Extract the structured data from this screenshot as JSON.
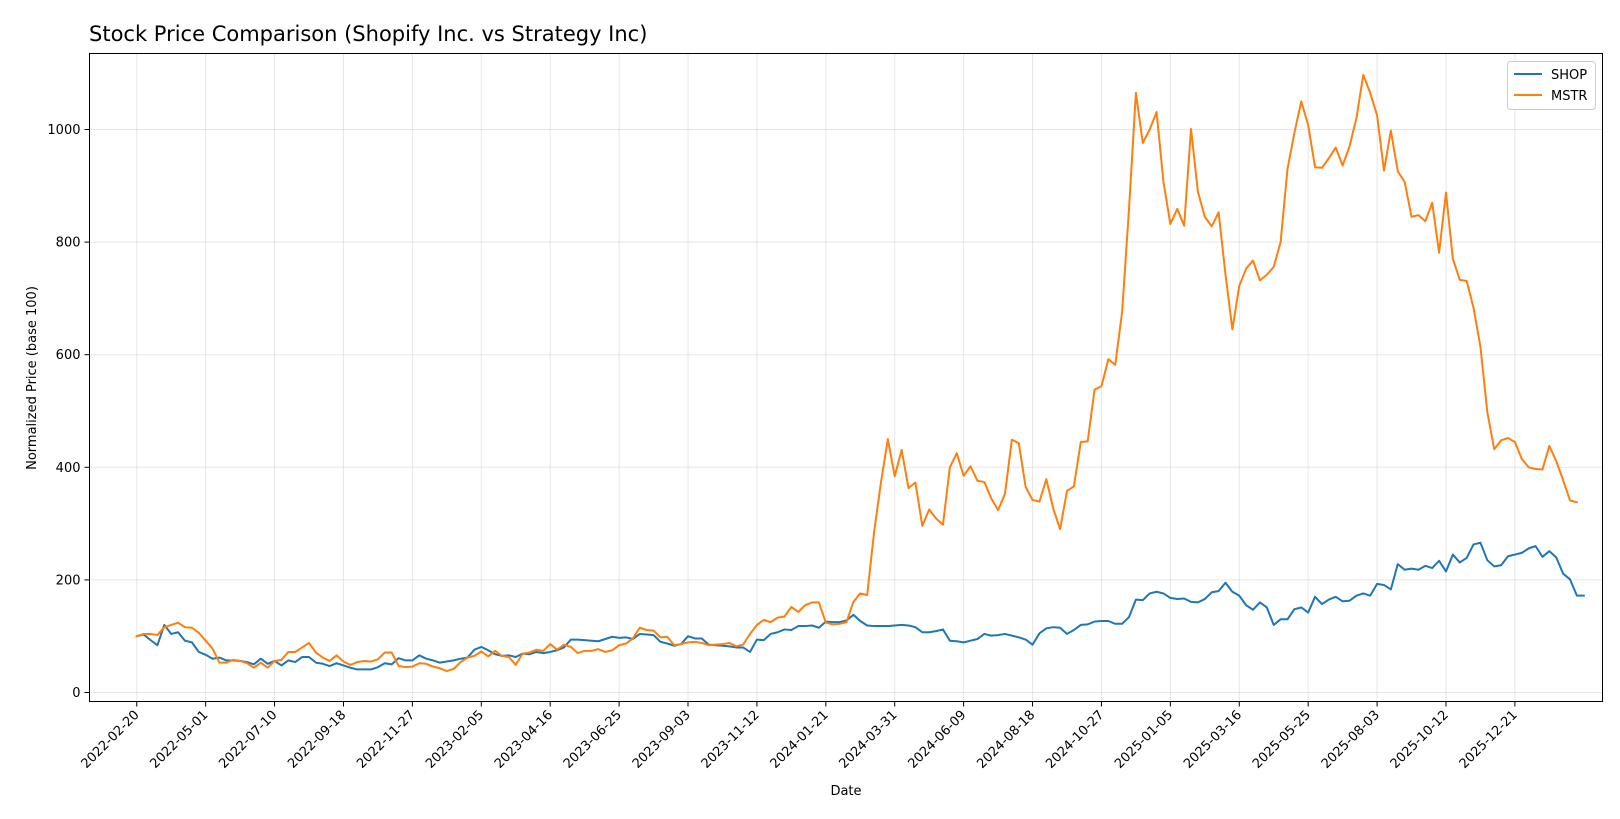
{
  "chart_data": {
    "type": "line",
    "title": "Stock Price Comparison (Shopify Inc. vs Strategy Inc)",
    "xlabel": "Date",
    "ylabel": "Normalized Price (base 100)",
    "ylim": [
      -16,
      1135
    ],
    "yticks": [
      0,
      200,
      400,
      600,
      800,
      1000
    ],
    "xlim": [
      "2022-01-03",
      "2026-03-20"
    ],
    "xticks": [
      "2022-02-20",
      "2022-05-01",
      "2022-07-10",
      "2022-09-18",
      "2022-11-27",
      "2023-02-05",
      "2023-04-16",
      "2023-06-25",
      "2023-09-03",
      "2023-11-12",
      "2024-01-21",
      "2024-03-31",
      "2024-06-09",
      "2024-08-18",
      "2024-10-27",
      "2025-01-05",
      "2025-03-16",
      "2025-05-25",
      "2025-08-03",
      "2025-10-12",
      "2025-12-21"
    ],
    "grid": true,
    "legend_position": "top-right",
    "start_date": "2022-02-20",
    "step_days": 7,
    "series": [
      {
        "name": "SHOP",
        "color": "#1f77b4",
        "values": [
          100,
          103,
          93,
          84,
          120,
          104,
          107,
          92,
          89,
          72,
          67,
          60,
          62,
          57,
          57,
          56,
          54,
          50,
          60,
          51,
          56,
          48,
          57,
          54,
          63,
          63,
          53,
          51,
          47,
          52,
          48,
          44,
          41,
          41,
          41,
          45,
          52,
          50,
          61,
          57,
          57,
          66,
          60,
          57,
          53,
          55,
          57,
          60,
          62,
          76,
          81,
          75,
          68,
          65,
          66,
          63,
          69,
          68,
          72,
          70,
          72,
          75,
          80,
          94,
          94,
          93,
          92,
          91,
          95,
          99,
          97,
          98,
          95,
          104,
          103,
          102,
          90,
          87,
          83,
          86,
          100,
          96,
          96,
          85,
          84,
          83,
          82,
          80,
          80,
          72,
          94,
          93,
          104,
          107,
          112,
          111,
          118,
          118,
          119,
          115,
          126,
          125,
          125,
          128,
          138,
          127,
          119,
          118,
          118,
          118,
          119,
          120,
          119,
          116,
          107,
          107,
          109,
          112,
          92,
          91,
          89,
          92,
          95,
          104,
          101,
          102,
          104,
          101,
          98,
          94,
          85,
          105,
          114,
          116,
          115,
          104,
          111,
          120,
          121,
          126,
          127,
          127,
          122,
          122,
          134,
          165,
          164,
          176,
          179,
          176,
          168,
          166,
          167,
          161,
          160,
          166,
          178,
          180,
          195,
          179,
          172,
          155,
          147,
          160,
          151,
          120,
          130,
          130,
          148,
          151,
          142,
          170,
          157,
          165,
          170,
          162,
          163,
          172,
          176,
          172,
          193,
          191,
          183,
          228,
          218,
          220,
          218,
          225,
          221,
          234,
          215,
          245,
          231,
          239,
          263,
          266,
          235,
          224,
          226,
          242,
          245,
          248,
          256,
          260,
          241,
          251,
          240,
          211,
          201,
          172,
          172
        ]
      },
      {
        "name": "MSTR",
        "color": "#ff7f0e",
        "values": [
          100,
          104,
          104,
          102,
          116,
          120,
          124,
          116,
          115,
          106,
          92,
          78,
          53,
          53,
          58,
          56,
          52,
          44,
          53,
          44,
          56,
          58,
          72,
          72,
          80,
          88,
          71,
          62,
          56,
          66,
          55,
          49,
          54,
          56,
          55,
          59,
          71,
          71,
          47,
          45,
          46,
          52,
          51,
          46,
          43,
          38,
          42,
          54,
          62,
          65,
          73,
          64,
          74,
          65,
          63,
          49,
          69,
          71,
          76,
          74,
          86,
          76,
          85,
          81,
          70,
          74,
          74,
          77,
          72,
          75,
          84,
          87,
          96,
          115,
          111,
          110,
          98,
          99,
          84,
          86,
          89,
          90,
          88,
          84,
          85,
          86,
          88,
          82,
          85,
          104,
          120,
          129,
          125,
          133,
          135,
          152,
          143,
          155,
          160,
          160,
          124,
          121,
          122,
          125,
          161,
          176,
          173,
          284,
          373,
          450,
          384,
          431,
          363,
          373,
          296,
          325,
          309,
          298,
          400,
          425,
          385,
          402,
          376,
          374,
          345,
          324,
          353,
          449,
          443,
          365,
          342,
          339,
          379,
          327,
          290,
          358,
          366,
          445,
          446,
          538,
          544,
          592,
          582,
          676,
          859,
          1065,
          976,
          1000,
          1031,
          907,
          832,
          859,
          829,
          1001,
          889,
          845,
          828,
          853,
          743,
          645,
          722,
          753,
          767,
          732,
          742,
          756,
          800,
          930,
          994,
          1050,
          1008,
          933,
          932,
          949,
          968,
          936,
          970,
          1020,
          1097,
          1065,
          1025,
          927,
          998,
          926,
          907,
          845,
          848,
          837,
          870,
          781,
          888,
          770,
          733,
          731,
          683,
          614,
          498,
          432,
          448,
          452,
          445,
          415,
          400,
          397,
          396,
          438,
          411,
          377,
          341,
          338
        ]
      }
    ]
  }
}
